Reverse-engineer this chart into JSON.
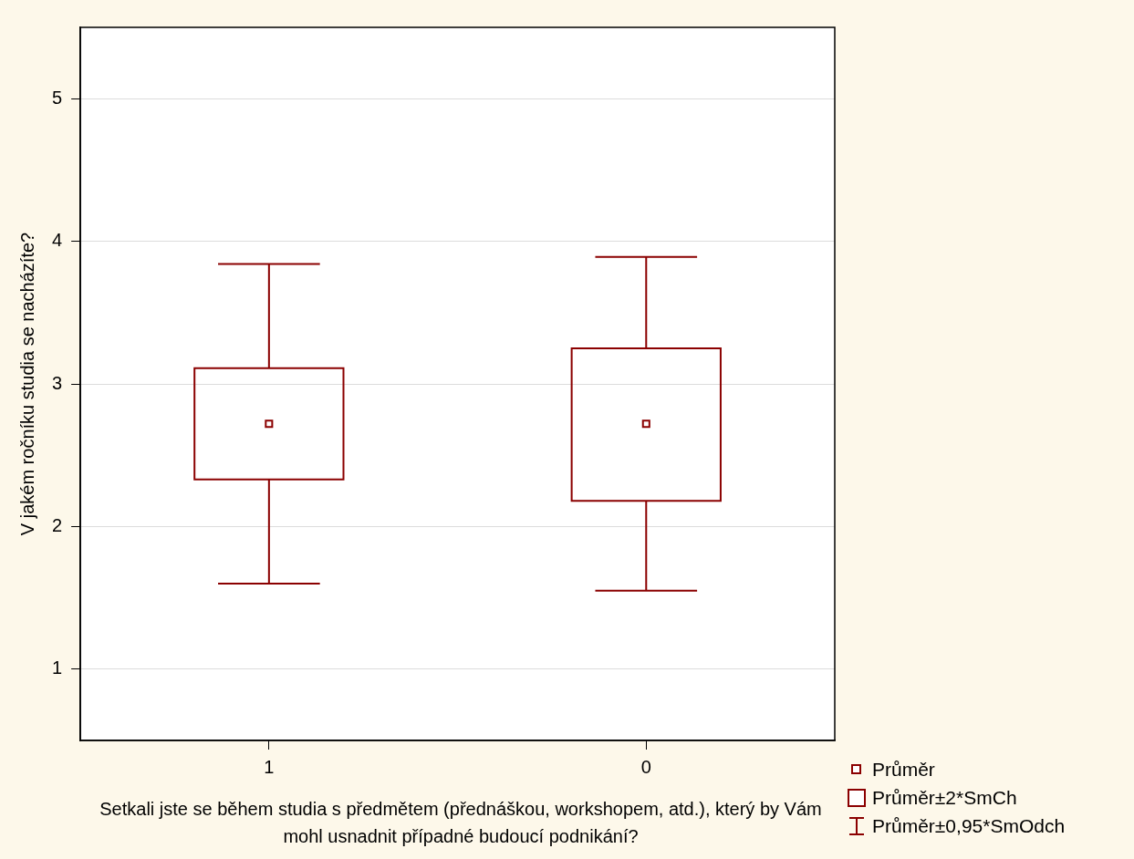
{
  "chart_data": {
    "type": "box",
    "xlabel": "Setkali jste se během studia s předmětem (přednáškou, workshopem, atd.), který by Vám mohl usnadnit případné budoucí podnikání?",
    "ylabel": "V jakém ročníku studia se nacházíte?",
    "categories": [
      "1",
      "0"
    ],
    "color": "#8b0000",
    "boxes": [
      {
        "low": 1.6,
        "q1": 2.33,
        "mean": 2.72,
        "q3": 3.11,
        "high": 3.84
      },
      {
        "low": 1.55,
        "q1": 2.18,
        "mean": 2.72,
        "q3": 3.25,
        "high": 3.89
      }
    ],
    "ylim": [
      0.5,
      5.5
    ],
    "yticks": [
      1,
      2,
      3,
      4,
      5
    ],
    "grid": "y",
    "annotations": [
      "Průměr",
      "Průměr±2*SmCh",
      "Průměr±0,95*SmOdch"
    ]
  }
}
